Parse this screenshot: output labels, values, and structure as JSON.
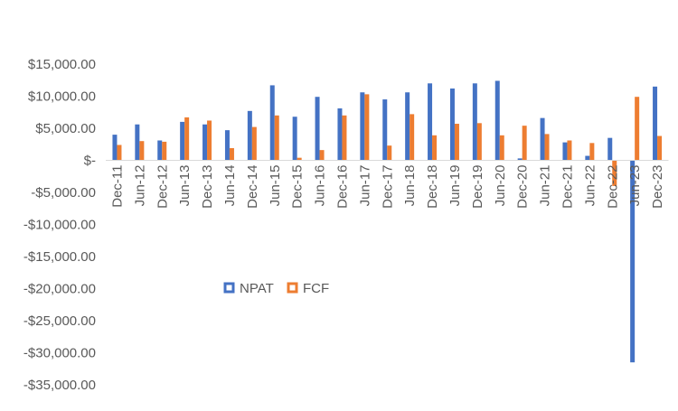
{
  "chart_data": {
    "type": "bar",
    "title": "",
    "xlabel": "",
    "ylabel": "",
    "ylim": [
      -35000,
      15000
    ],
    "yticks": [
      15000,
      10000,
      5000,
      0,
      -5000,
      -10000,
      -15000,
      -20000,
      -25000,
      -30000,
      -35000
    ],
    "ytick_labels": [
      "$15,000.00",
      "$10,000.00",
      "$5,000.00",
      "$-",
      "-$5,000.00",
      "-$10,000.00",
      "-$15,000.00",
      "-$20,000.00",
      "-$25,000.00",
      "-$30,000.00",
      "-$35,000.00"
    ],
    "categories": [
      "Dec-11",
      "Jun-12",
      "Dec-12",
      "Jun-13",
      "Dec-13",
      "Jun-14",
      "Dec-14",
      "Jun-15",
      "Dec-15",
      "Jun-16",
      "Dec-16",
      "Jun-17",
      "Dec-17",
      "Jun-18",
      "Dec-18",
      "Jun-19",
      "Dec-19",
      "Jun-20",
      "Dec-20",
      "Jun-21",
      "Dec-21",
      "Jun-22",
      "Dec-22",
      "Jun-23",
      "Dec-23"
    ],
    "series": [
      {
        "name": "NPAT",
        "color": "#4472C4",
        "values": [
          4000,
          5600,
          3100,
          6000,
          5600,
          4700,
          7700,
          11700,
          6800,
          9900,
          8100,
          10600,
          9500,
          10600,
          12000,
          11200,
          12000,
          12400,
          300,
          6600,
          2800,
          700,
          3500,
          -31500,
          11500
        ]
      },
      {
        "name": "FCF",
        "color": "#ED7D31",
        "values": [
          2400,
          3000,
          2900,
          6700,
          6200,
          1900,
          5200,
          7000,
          400,
          1600,
          7000,
          10300,
          2300,
          7200,
          3900,
          5700,
          5800,
          3900,
          5400,
          4100,
          3100,
          2700,
          -4000,
          9900,
          3800
        ]
      }
    ],
    "legend": {
      "placement": "center-left",
      "entries": [
        "NPAT",
        "FCF"
      ]
    },
    "grid": false
  }
}
